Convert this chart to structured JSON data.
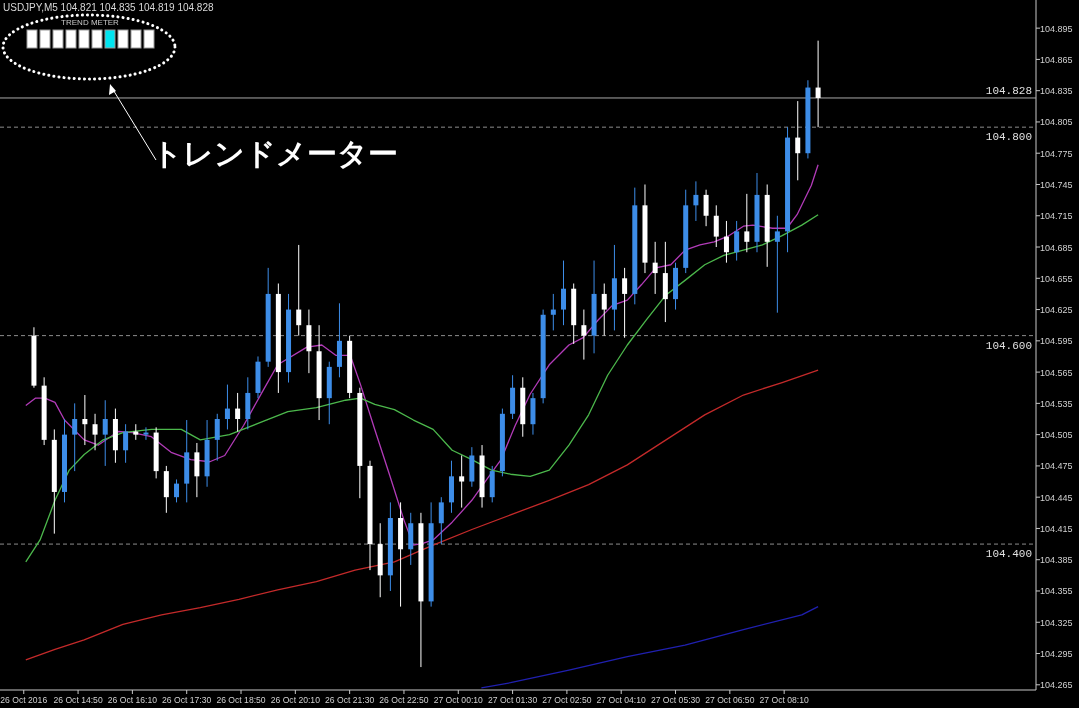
{
  "chart_data": {
    "type": "candlestick",
    "title": "USDJPY,M5 104.821 104.835 104.819 104.828",
    "annotations": [
      "TREND METER",
      "トレンドメーター"
    ],
    "x": [
      "2016-10-26T13:45",
      "2016-10-26T14:00",
      "2016-10-26T14:15",
      "2016-10-26T14:30",
      "2016-10-26T14:45",
      "2016-10-26T15:00",
      "2016-10-26T15:15",
      "2016-10-26T15:30",
      "2016-10-26T15:45",
      "2016-10-26T16:00",
      "2016-10-26T16:15",
      "2016-10-26T16:30",
      "2016-10-26T16:45",
      "2016-10-26T17:00",
      "2016-10-26T17:15",
      "2016-10-26T17:30",
      "2016-10-26T17:45",
      "2016-10-26T18:00",
      "2016-10-26T18:15",
      "2016-10-26T18:30",
      "2016-10-26T18:45",
      "2016-10-26T19:00",
      "2016-10-26T19:15",
      "2016-10-26T19:30",
      "2016-10-26T19:45",
      "2016-10-26T20:00",
      "2016-10-26T20:15",
      "2016-10-26T20:30",
      "2016-10-26T20:45",
      "2016-10-26T21:00",
      "2016-10-26T21:15",
      "2016-10-26T21:30",
      "2016-10-26T21:45",
      "2016-10-26T22:00",
      "2016-10-26T22:15",
      "2016-10-26T22:30",
      "2016-10-26T22:45",
      "2016-10-26T23:00",
      "2016-10-26T23:15",
      "2016-10-26T23:30",
      "2016-10-26T23:45",
      "2016-10-27T00:00",
      "2016-10-27T00:15",
      "2016-10-27T00:30",
      "2016-10-27T00:45",
      "2016-10-27T01:00",
      "2016-10-27T01:15",
      "2016-10-27T01:30",
      "2016-10-27T01:45",
      "2016-10-27T02:00",
      "2016-10-27T02:15",
      "2016-10-27T02:30",
      "2016-10-27T02:45",
      "2016-10-27T03:00",
      "2016-10-27T03:15",
      "2016-10-27T03:30",
      "2016-10-27T03:45",
      "2016-10-27T04:00",
      "2016-10-27T04:15",
      "2016-10-27T04:30",
      "2016-10-27T04:45",
      "2016-10-27T05:00",
      "2016-10-27T05:15",
      "2016-10-27T05:30",
      "2016-10-27T05:45",
      "2016-10-27T06:00",
      "2016-10-27T06:15",
      "2016-10-27T06:30",
      "2016-10-27T06:45",
      "2016-10-27T07:00",
      "2016-10-27T07:15",
      "2016-10-27T07:30",
      "2016-10-27T07:45",
      "2016-10-27T08:00",
      "2016-10-27T08:15",
      "2016-10-27T08:30",
      "2016-10-27T08:45",
      "2016-10-27T09:00"
    ],
    "ohlc": [
      [
        104.6,
        104.608,
        104.55,
        104.552
      ],
      [
        104.552,
        104.56,
        104.495,
        104.5
      ],
      [
        104.5,
        104.51,
        104.41,
        104.45
      ],
      [
        104.45,
        104.52,
        104.44,
        104.505
      ],
      [
        104.505,
        104.535,
        104.47,
        104.52
      ],
      [
        104.52,
        104.543,
        104.495,
        104.515
      ],
      [
        104.515,
        104.525,
        104.49,
        104.505
      ],
      [
        104.505,
        104.538,
        104.475,
        104.52
      ],
      [
        104.52,
        104.53,
        104.478,
        104.49
      ],
      [
        104.49,
        104.515,
        104.478,
        104.508
      ],
      [
        104.508,
        104.515,
        104.5,
        104.505
      ],
      [
        104.505,
        104.512,
        104.5,
        104.507
      ],
      [
        104.507,
        104.512,
        104.463,
        104.47
      ],
      [
        104.47,
        104.475,
        104.43,
        104.445
      ],
      [
        104.445,
        104.462,
        104.44,
        104.458
      ],
      [
        104.458,
        104.519,
        104.44,
        104.488
      ],
      [
        104.488,
        104.497,
        104.445,
        104.465
      ],
      [
        104.465,
        104.519,
        104.455,
        104.5
      ],
      [
        104.5,
        104.525,
        104.48,
        104.52
      ],
      [
        104.52,
        104.553,
        104.51,
        104.53
      ],
      [
        104.53,
        104.545,
        104.508,
        104.52
      ],
      [
        104.52,
        104.56,
        104.51,
        104.545
      ],
      [
        104.545,
        104.58,
        104.54,
        104.575
      ],
      [
        104.575,
        104.665,
        104.57,
        104.64
      ],
      [
        104.64,
        104.65,
        104.545,
        104.565
      ],
      [
        104.565,
        104.64,
        104.555,
        104.625
      ],
      [
        104.625,
        104.687,
        104.6,
        104.61
      ],
      [
        104.61,
        104.625,
        104.564,
        104.585
      ],
      [
        104.585,
        104.61,
        104.519,
        104.54
      ],
      [
        104.54,
        104.575,
        104.515,
        104.57
      ],
      [
        104.57,
        104.631,
        104.56,
        104.595
      ],
      [
        104.595,
        104.6,
        104.54,
        104.545
      ],
      [
        104.545,
        104.55,
        104.444,
        104.475
      ],
      [
        104.475,
        104.48,
        104.375,
        104.4
      ],
      [
        104.4,
        104.42,
        104.349,
        104.37
      ],
      [
        104.37,
        104.44,
        104.355,
        104.425
      ],
      [
        104.425,
        104.44,
        104.34,
        104.395
      ],
      [
        104.395,
        104.43,
        104.38,
        104.42
      ],
      [
        104.42,
        104.43,
        104.282,
        104.345
      ],
      [
        104.345,
        104.44,
        104.34,
        104.42
      ],
      [
        104.42,
        104.445,
        104.4,
        104.44
      ],
      [
        104.44,
        104.48,
        104.43,
        104.465
      ],
      [
        104.465,
        104.485,
        104.435,
        104.46
      ],
      [
        104.46,
        104.493,
        104.455,
        104.485
      ],
      [
        104.485,
        104.495,
        104.435,
        104.445
      ],
      [
        104.445,
        104.475,
        104.44,
        104.47
      ],
      [
        104.47,
        104.53,
        104.465,
        104.525
      ],
      [
        104.525,
        104.562,
        104.52,
        104.55
      ],
      [
        104.55,
        104.56,
        104.503,
        104.515
      ],
      [
        104.515,
        104.545,
        104.505,
        104.54
      ],
      [
        104.54,
        104.625,
        104.535,
        104.62
      ],
      [
        104.62,
        104.64,
        104.605,
        104.625
      ],
      [
        104.625,
        104.672,
        104.61,
        104.645
      ],
      [
        104.645,
        104.65,
        104.592,
        104.61
      ],
      [
        104.61,
        104.625,
        104.577,
        104.6
      ],
      [
        104.6,
        104.672,
        104.583,
        104.64
      ],
      [
        104.64,
        104.65,
        104.6,
        104.625
      ],
      [
        104.625,
        104.687,
        104.605,
        104.655
      ],
      [
        104.655,
        104.665,
        104.598,
        104.64
      ],
      [
        104.64,
        104.742,
        104.63,
        104.725
      ],
      [
        104.725,
        104.745,
        104.66,
        104.67
      ],
      [
        104.67,
        104.69,
        104.64,
        104.66
      ],
      [
        104.66,
        104.69,
        104.613,
        104.635
      ],
      [
        104.635,
        104.67,
        104.625,
        104.665
      ],
      [
        104.665,
        104.74,
        104.66,
        104.725
      ],
      [
        104.725,
        104.748,
        104.71,
        104.735
      ],
      [
        104.735,
        104.74,
        104.705,
        104.715
      ],
      [
        104.715,
        104.725,
        104.685,
        104.695
      ],
      [
        104.695,
        104.71,
        104.67,
        104.68
      ],
      [
        104.68,
        104.71,
        104.672,
        104.7
      ],
      [
        104.7,
        104.736,
        104.68,
        104.69
      ],
      [
        104.69,
        104.756,
        104.68,
        104.735
      ],
      [
        104.735,
        104.745,
        104.666,
        104.69
      ],
      [
        104.69,
        104.715,
        104.622,
        104.7
      ],
      [
        104.7,
        104.8,
        104.68,
        104.79
      ],
      [
        104.79,
        104.825,
        104.749,
        104.775
      ],
      [
        104.775,
        104.845,
        104.77,
        104.838
      ],
      [
        104.838,
        104.883,
        104.8,
        104.828
      ]
    ],
    "series": [
      {
        "type": "line",
        "color": "#b23bb8",
        "x": [
          "2016-10-26T13:33",
          "2016-10-26T13:47",
          "2016-10-26T14:01",
          "2016-10-26T14:16",
          "2016-10-26T14:30",
          "2016-10-26T14:59",
          "2016-10-26T15:20",
          "2016-10-26T15:49",
          "2016-10-26T16:10",
          "2016-10-26T16:38",
          "2016-10-26T17:07",
          "2016-10-26T17:36",
          "2016-10-26T18:04",
          "2016-10-26T18:26",
          "2016-10-26T18:54",
          "2016-10-26T19:23",
          "2016-10-26T19:44",
          "2016-10-26T20:27",
          "2016-10-26T20:49",
          "2016-10-26T21:10",
          "2016-10-26T21:31",
          "2016-10-26T21:46",
          "2016-10-26T22:07",
          "2016-10-26T22:29",
          "2016-10-26T22:50",
          "2016-10-26T23:04",
          "2016-10-26T23:19",
          "2016-10-26T23:33",
          "2016-10-27T00:01",
          "2016-10-27T00:30",
          "2016-10-27T00:52",
          "2016-10-27T01:13",
          "2016-10-27T01:34",
          "2016-10-27T01:56",
          "2016-10-27T02:24",
          "2016-10-27T02:53",
          "2016-10-27T03:14",
          "2016-10-27T03:36",
          "2016-10-27T03:57",
          "2016-10-27T04:19",
          "2016-10-27T04:40",
          "2016-10-27T05:01",
          "2016-10-27T05:23",
          "2016-10-27T05:44",
          "2016-10-27T06:06",
          "2016-10-27T06:27",
          "2016-10-27T06:49",
          "2016-10-27T07:10",
          "2016-10-27T07:24",
          "2016-10-27T07:53",
          "2016-10-27T08:14",
          "2016-10-27T08:29",
          "2016-10-27T08:50",
          "2016-10-27T09:00"
        ],
        "values": [
          104.533,
          104.54,
          104.54,
          104.536,
          104.519,
          104.5,
          104.495,
          104.508,
          104.507,
          104.503,
          104.488,
          104.481,
          104.479,
          104.485,
          104.514,
          104.548,
          104.572,
          104.589,
          104.591,
          104.581,
          104.581,
          104.553,
          104.51,
          104.466,
          104.423,
          104.399,
          104.401,
          104.404,
          104.421,
          104.442,
          104.462,
          104.481,
          104.514,
          104.544,
          104.572,
          104.591,
          104.598,
          104.615,
          104.629,
          104.634,
          104.649,
          104.665,
          104.668,
          104.682,
          104.687,
          104.69,
          104.696,
          104.705,
          104.706,
          104.703,
          104.703,
          104.716,
          104.744,
          104.764
        ]
      },
      {
        "type": "line",
        "color": "#4cb84c",
        "x": [
          "2016-10-26T13:33",
          "2016-10-26T13:54",
          "2016-10-26T14:16",
          "2016-10-26T14:37",
          "2016-10-26T14:59",
          "2016-10-26T15:27",
          "2016-10-26T15:56",
          "2016-10-26T16:38",
          "2016-10-26T17:22",
          "2016-10-26T17:50",
          "2016-10-26T18:33",
          "2016-10-26T19:16",
          "2016-10-26T19:59",
          "2016-10-26T20:41",
          "2016-10-26T21:24",
          "2016-10-26T21:46",
          "2016-10-26T22:07",
          "2016-10-26T22:36",
          "2016-10-26T23:04",
          "2016-10-26T23:33",
          "2016-10-27T00:01",
          "2016-10-27T00:30",
          "2016-10-27T00:59",
          "2016-10-27T01:27",
          "2016-10-27T01:56",
          "2016-10-27T02:24",
          "2016-10-27T02:53",
          "2016-10-27T03:22",
          "2016-10-27T03:50",
          "2016-10-27T04:19",
          "2016-10-27T04:47",
          "2016-10-27T05:16",
          "2016-10-27T05:44",
          "2016-10-27T06:13",
          "2016-10-27T06:41",
          "2016-10-27T07:10",
          "2016-10-27T07:38",
          "2016-10-27T08:07",
          "2016-10-27T08:36",
          "2016-10-27T09:00"
        ],
        "values": [
          104.383,
          104.404,
          104.442,
          104.471,
          104.486,
          104.5,
          104.507,
          104.51,
          104.51,
          104.5,
          104.505,
          104.516,
          104.527,
          104.531,
          104.538,
          104.54,
          104.534,
          104.529,
          104.519,
          104.51,
          104.49,
          104.481,
          104.471,
          104.467,
          104.465,
          104.471,
          104.495,
          104.524,
          104.562,
          104.591,
          104.615,
          104.639,
          104.653,
          104.668,
          104.677,
          104.682,
          104.687,
          104.696,
          104.706,
          104.716
        ]
      },
      {
        "type": "line",
        "color": "#c42a2a",
        "x": [
          "2016-10-26T13:33",
          "2016-10-26T14:16",
          "2016-10-26T14:59",
          "2016-10-26T15:56",
          "2016-10-26T16:53",
          "2016-10-26T17:50",
          "2016-10-26T18:47",
          "2016-10-26T19:44",
          "2016-10-26T20:41",
          "2016-10-26T21:38",
          "2016-10-26T22:36",
          "2016-10-26T23:33",
          "2016-10-27T00:30",
          "2016-10-27T01:27",
          "2016-10-27T02:24",
          "2016-10-27T03:22",
          "2016-10-27T04:19",
          "2016-10-27T05:16",
          "2016-10-27T06:13",
          "2016-10-27T07:10",
          "2016-10-27T08:07",
          "2016-10-27T09:00"
        ],
        "values": [
          104.289,
          104.299,
          104.308,
          104.323,
          104.332,
          104.339,
          104.347,
          104.356,
          104.364,
          104.375,
          104.383,
          104.399,
          104.414,
          104.428,
          104.442,
          104.457,
          104.476,
          104.5,
          104.524,
          104.543,
          104.555,
          104.567
        ]
      },
      {
        "type": "line",
        "color": "#2020b0",
        "x": [
          "2016-10-27T00:44",
          "2016-10-27T01:27",
          "2016-10-27T02:53",
          "2016-10-27T04:19",
          "2016-10-27T05:44",
          "2016-10-27T07:10",
          "2016-10-27T08:36",
          "2016-10-27T09:00"
        ],
        "values": [
          104.262,
          104.267,
          104.279,
          104.292,
          104.303,
          104.318,
          104.332,
          104.34
        ]
      }
    ],
    "xlim": [
      "2016-10-26T12:55",
      "2016-10-27T14:18"
    ],
    "ylim": [
      104.26,
      104.922
    ],
    "xticks": [
      {
        "value": "2016-10-26T13:30",
        "label": "26 Oct 2016"
      },
      {
        "value": "2016-10-26T14:50",
        "label": "26 Oct 14:50"
      },
      {
        "value": "2016-10-26T16:10",
        "label": "26 Oct 16:10"
      },
      {
        "value": "2016-10-26T17:30",
        "label": "26 Oct 17:30"
      },
      {
        "value": "2016-10-26T18:50",
        "label": "26 Oct 18:50"
      },
      {
        "value": "2016-10-26T20:10",
        "label": "26 Oct 20:10"
      },
      {
        "value": "2016-10-26T21:30",
        "label": "26 Oct 21:30"
      },
      {
        "value": "2016-10-26T22:50",
        "label": "26 Oct 22:50"
      },
      {
        "value": "2016-10-27T00:10",
        "label": "27 Oct 00:10"
      },
      {
        "value": "2016-10-27T01:30",
        "label": "27 Oct 01:30"
      },
      {
        "value": "2016-10-27T02:50",
        "label": "27 Oct 02:50"
      },
      {
        "value": "2016-10-27T04:10",
        "label": "27 Oct 04:10"
      },
      {
        "value": "2016-10-27T05:30",
        "label": "27 Oct 05:30"
      },
      {
        "value": "2016-10-27T06:50",
        "label": "27 Oct 06:50"
      },
      {
        "value": "2016-10-27T08:10",
        "label": "27 Oct 08:10"
      }
    ],
    "yticks": [
      104.895,
      104.865,
      104.835,
      104.805,
      104.775,
      104.745,
      104.715,
      104.685,
      104.655,
      104.625,
      104.595,
      104.565,
      104.535,
      104.505,
      104.475,
      104.445,
      104.415,
      104.385,
      104.355,
      104.325,
      104.295,
      104.265
    ],
    "ref_lines": [
      {
        "axis": "y",
        "value": 104.8,
        "label": "104.800",
        "line_style": "dashed",
        "color": "#8c8c8c"
      },
      {
        "axis": "y",
        "value": 104.6,
        "label": "104.600",
        "line_style": "dashed",
        "color": "#8c8c8c"
      },
      {
        "axis": "y",
        "value": 104.4,
        "label": "104.400",
        "line_style": "dashed",
        "color": "#8c8c8c"
      },
      {
        "axis": "y",
        "value": 104.828,
        "label": "104.828",
        "line_style": "solid",
        "color": "#a8a8a8"
      }
    ]
  }
}
